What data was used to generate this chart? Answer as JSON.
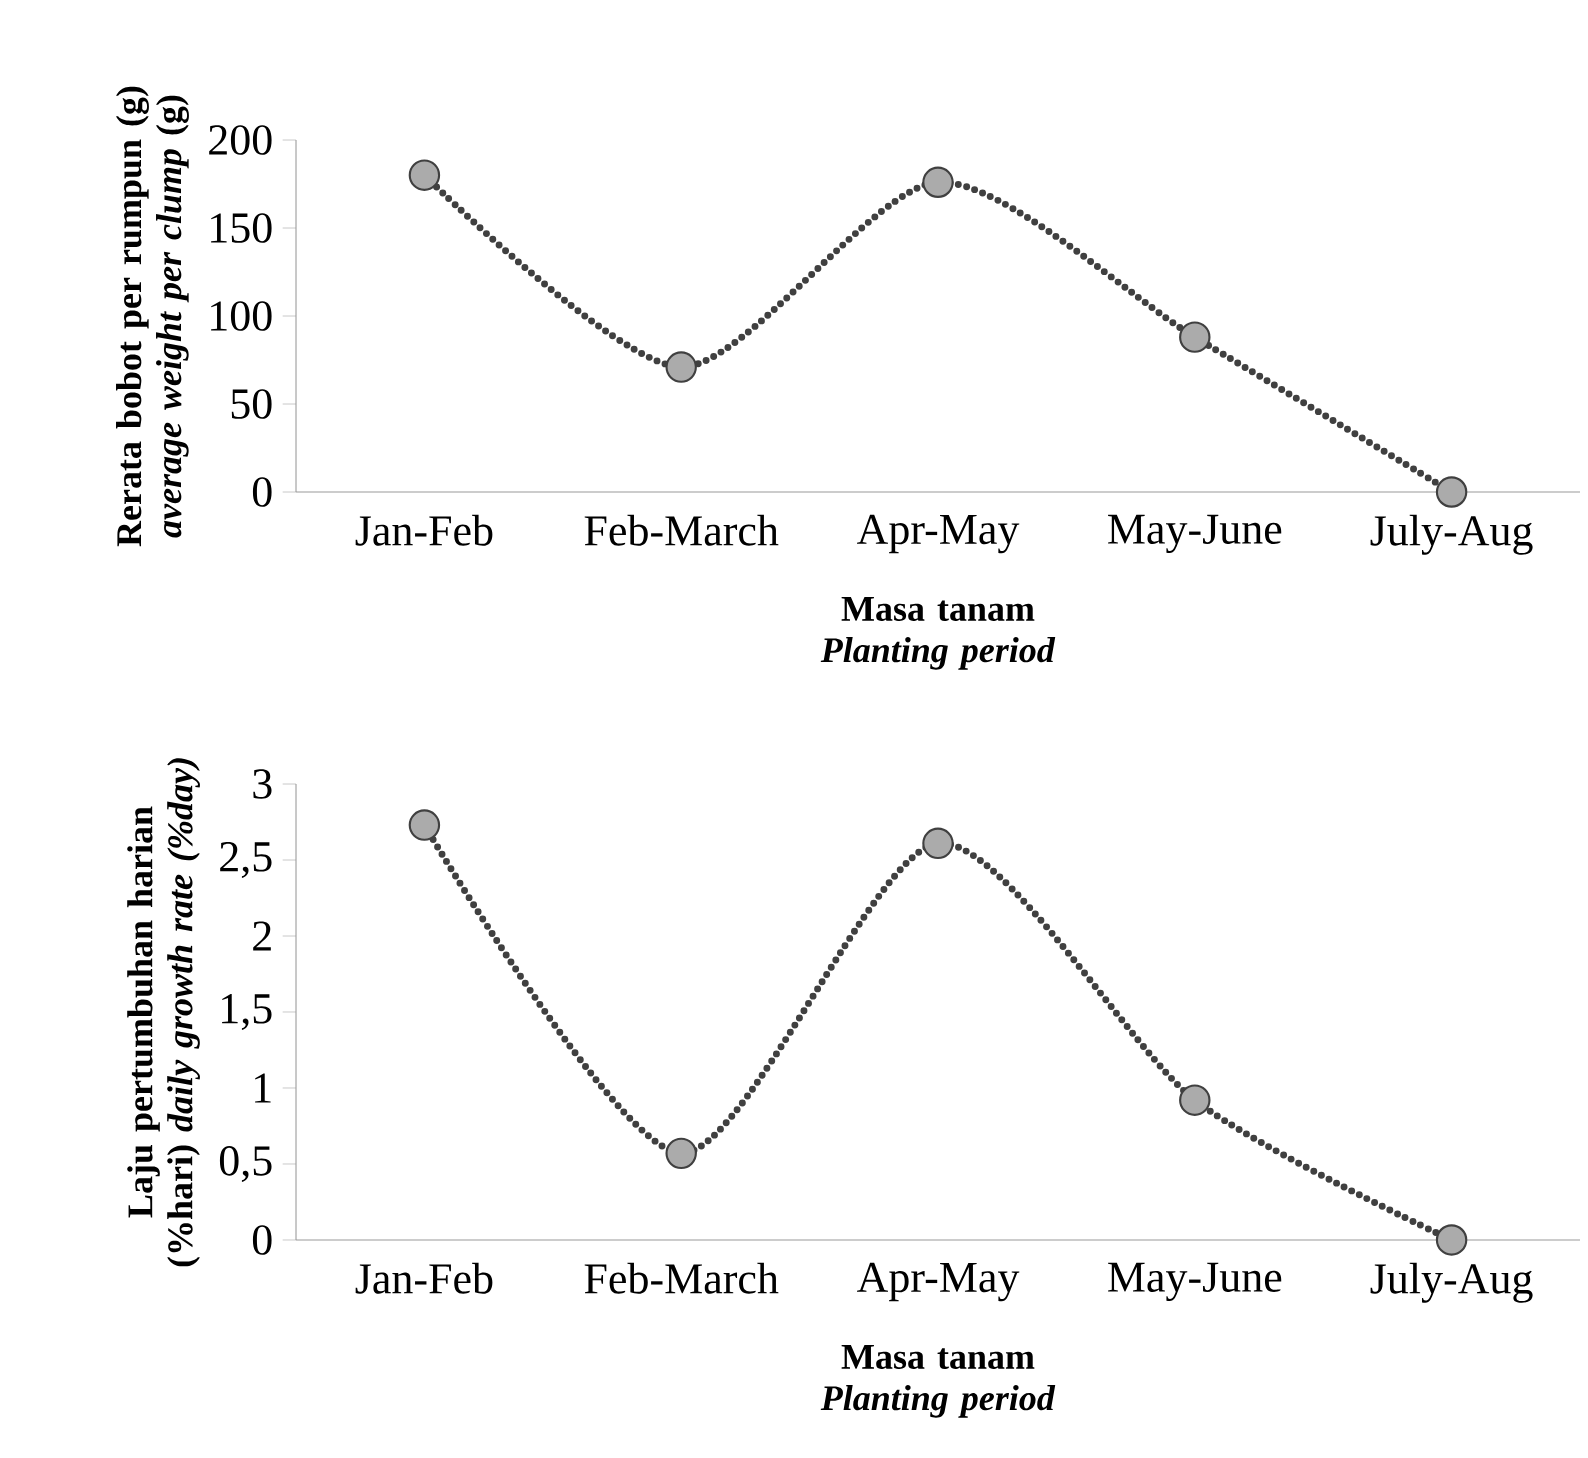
{
  "chart_data": [
    {
      "type": "line",
      "xlabel": "Masa tanam *Planting period*",
      "ylabel": "Rerata bobot per rumpun (g) *average weight per clump* (g)",
      "categories": [
        "Jan-Feb",
        "Feb-March",
        "Apr-May",
        "May-June",
        "July-Aug"
      ],
      "series": [
        {
          "color": "#404040",
          "values": [
            180,
            71,
            176,
            88,
            0
          ]
        }
      ],
      "ylim": [
        0,
        200
      ],
      "yticks": [
        0,
        50,
        100,
        150,
        200
      ],
      "marker": "circle",
      "line_style": "dotted"
    },
    {
      "type": "line",
      "xlabel": "Masa tanam *Planting period*",
      "ylabel": "Laju pertumbuhan harian (%hari) *daily growth rate (%day)*",
      "categories": [
        "Jan-Feb",
        "Feb-March",
        "Apr-May",
        "May-June",
        "July-Aug"
      ],
      "series": [
        {
          "color": "#404040",
          "values": [
            2.73,
            0.57,
            2.61,
            0.92,
            0
          ]
        }
      ],
      "ylim": [
        0,
        3
      ],
      "yticks": [
        0,
        {
          "value": 0.5,
          "label": "0,5"
        },
        1,
        {
          "value": 1.5,
          "label": "1,5"
        },
        2,
        {
          "value": 2.5,
          "label": "2,5"
        },
        3
      ],
      "marker": "circle",
      "line_style": "dotted"
    }
  ]
}
